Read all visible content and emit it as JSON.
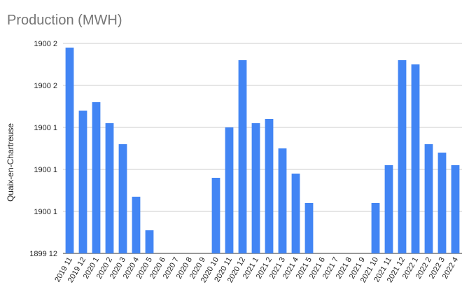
{
  "chart_data": {
    "type": "bar",
    "title": "Production (MWH)",
    "xlabel": "",
    "ylabel": "Quaix-en-Chartreuse",
    "y_tick_labels": [
      "1899 12",
      "1900 1",
      "1900 1",
      "1900 1",
      "1900 2",
      "1900 2"
    ],
    "ylim": [
      0,
      100
    ],
    "grid": true,
    "legend": "none",
    "bar_color": "#4285f4",
    "categories": [
      "2019 11",
      "2019 12",
      "2020 1",
      "2020 2",
      "2020 3",
      "2020 4",
      "2020 5",
      "2020 6",
      "2020 7",
      "2020 8",
      "2020 9",
      "2020 10",
      "2020 11",
      "2020 12",
      "2021 1",
      "2021 2",
      "2021 3",
      "2021 4",
      "2021 5",
      "2021 6",
      "2021 7",
      "2021 8",
      "2021 9",
      "2021 10",
      "2021 11",
      "2021 12",
      "2022 1",
      "2022 2",
      "2022 3",
      "2022 4"
    ],
    "values": [
      98,
      68,
      72,
      62,
      52,
      27,
      11,
      0,
      0,
      0,
      0,
      36,
      60,
      92,
      62,
      64,
      50,
      38,
      24,
      0,
      0,
      0,
      0,
      24,
      42,
      92,
      90,
      52,
      48,
      42
    ]
  }
}
